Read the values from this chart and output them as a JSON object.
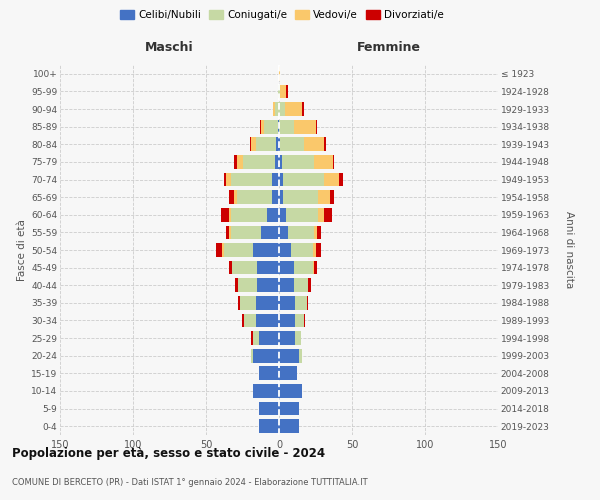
{
  "age_groups": [
    "0-4",
    "5-9",
    "10-14",
    "15-19",
    "20-24",
    "25-29",
    "30-34",
    "35-39",
    "40-44",
    "45-49",
    "50-54",
    "55-59",
    "60-64",
    "65-69",
    "70-74",
    "75-79",
    "80-84",
    "85-89",
    "90-94",
    "95-99",
    "100+"
  ],
  "birth_years": [
    "2019-2023",
    "2014-2018",
    "2009-2013",
    "2004-2008",
    "1999-2003",
    "1994-1998",
    "1989-1993",
    "1984-1988",
    "1979-1983",
    "1974-1978",
    "1969-1973",
    "1964-1968",
    "1959-1963",
    "1954-1958",
    "1949-1953",
    "1944-1948",
    "1939-1943",
    "1934-1938",
    "1929-1933",
    "1924-1928",
    "≤ 1923"
  ],
  "male": {
    "celibi": [
      14,
      14,
      18,
      14,
      18,
      14,
      16,
      16,
      15,
      15,
      18,
      12,
      8,
      5,
      5,
      3,
      2,
      1,
      0,
      0,
      0
    ],
    "coniugati": [
      0,
      0,
      0,
      0,
      1,
      4,
      8,
      11,
      13,
      17,
      20,
      21,
      25,
      24,
      28,
      22,
      14,
      9,
      3,
      1,
      0
    ],
    "vedovi": [
      0,
      0,
      0,
      0,
      0,
      0,
      0,
      0,
      0,
      0,
      1,
      1,
      1,
      2,
      3,
      4,
      3,
      2,
      1,
      0,
      0
    ],
    "divorziati": [
      0,
      0,
      0,
      0,
      0,
      1,
      1,
      1,
      2,
      2,
      4,
      2,
      6,
      3,
      2,
      2,
      1,
      1,
      0,
      0,
      0
    ]
  },
  "female": {
    "nubili": [
      14,
      14,
      16,
      12,
      14,
      11,
      11,
      11,
      10,
      10,
      8,
      6,
      5,
      3,
      3,
      2,
      1,
      0,
      0,
      0,
      0
    ],
    "coniugate": [
      0,
      0,
      0,
      0,
      2,
      4,
      6,
      8,
      10,
      13,
      15,
      18,
      22,
      24,
      28,
      22,
      16,
      10,
      4,
      1,
      0
    ],
    "vedove": [
      0,
      0,
      0,
      0,
      0,
      0,
      0,
      0,
      0,
      1,
      2,
      2,
      4,
      8,
      10,
      13,
      14,
      15,
      12,
      4,
      1
    ],
    "divorziate": [
      0,
      0,
      0,
      0,
      0,
      0,
      1,
      1,
      2,
      2,
      4,
      3,
      5,
      3,
      3,
      1,
      1,
      1,
      1,
      1,
      0
    ]
  },
  "colors": {
    "celibi": "#4472C4",
    "coniugati": "#C6D9A4",
    "vedovi": "#FAC86B",
    "divorziati": "#CC0000"
  },
  "title": "Popolazione per età, sesso e stato civile - 2024",
  "subtitle": "COMUNE DI BERCETO (PR) - Dati ISTAT 1° gennaio 2024 - Elaborazione TUTTITALIA.IT",
  "xlabel_left": "Maschi",
  "xlabel_right": "Femmine",
  "ylabel_left": "Fasce di età",
  "ylabel_right": "Anni di nascita",
  "xlim": 150,
  "legend_labels": [
    "Celibi/Nubili",
    "Coniugati/e",
    "Vedovi/e",
    "Divorziati/e"
  ],
  "background_color": "#f7f7f7"
}
